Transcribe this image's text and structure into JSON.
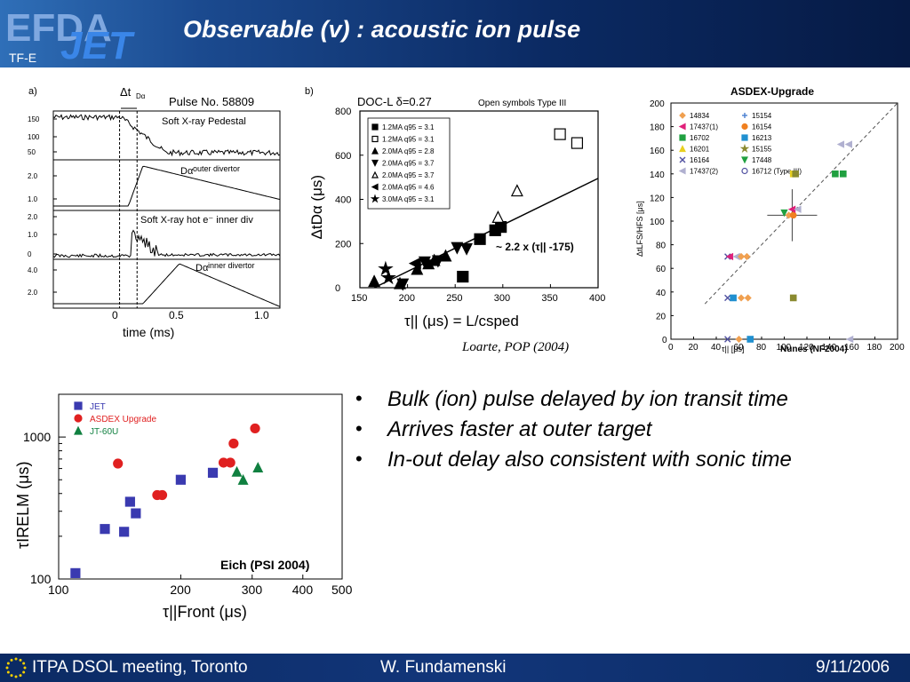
{
  "header": {
    "title": "Observable (v) : acoustic ion pulse",
    "logo_text_efda": "EFDA",
    "logo_text_jet": "JET",
    "logo_text_tfe": "TF-E"
  },
  "footer": {
    "meeting": "ITPA DSOL meeting, Toronto",
    "author": "W. Fundamenski",
    "date": "9/11/2006"
  },
  "citation": "Loarte, POP (2004)",
  "bullets": [
    "Bulk (ion) pulse delayed by ion transit time",
    "Arrives faster at outer target",
    "In-out delay also consistent with sonic time"
  ],
  "panel_a": {
    "label": "a)",
    "delta_label": "Δt",
    "delta_sub": "Dα",
    "pulse_label": "Pulse No. 58809",
    "traces": [
      {
        "name": "Soft X-ray Pedestal",
        "ticks": [
          "150",
          "100",
          "50"
        ]
      },
      {
        "name": "Dαouter divertor",
        "ticks": [
          "2.0",
          "1.0"
        ]
      },
      {
        "name": "Soft X-ray hot e⁻ inner div",
        "ticks": [
          "2.0",
          "1.0",
          "0"
        ]
      },
      {
        "name": "Dαinner divertor",
        "ticks": [
          "4.0",
          "2.0"
        ]
      }
    ],
    "xticks": [
      "0",
      "0.5",
      "1.0"
    ],
    "xlabel": "time (ms)"
  },
  "chart_data": [
    {
      "type": "scatter",
      "panel": "b)",
      "title": "DOC-L δ=0.27",
      "subtitle": "Open symbols Type III",
      "xlabel": "τ|| (μs) = L/csped",
      "ylabel": "ΔtDα (μs)",
      "xlim": [
        150,
        400
      ],
      "ylim": [
        0,
        800
      ],
      "xticks": [
        150,
        200,
        250,
        300,
        350,
        400
      ],
      "yticks": [
        0,
        200,
        400,
        600,
        800
      ],
      "fit_label": "~ 2.2 x (τ|| -175)",
      "fit_line": [
        [
          165,
          -22
        ],
        [
          400,
          495
        ]
      ],
      "legend": [
        {
          "marker": "square-filled",
          "label": "1.2MA q95 = 3.1"
        },
        {
          "marker": "square-open",
          "label": "1.2MA q95 = 3.1"
        },
        {
          "marker": "triangle-up-filled",
          "label": "2.0MA q95 = 2.8"
        },
        {
          "marker": "triangle-down-filled",
          "label": "2.0MA q95 = 3.7"
        },
        {
          "marker": "triangle-up-open",
          "label": "2.0MA q95 = 3.7"
        },
        {
          "marker": "triangle-left-filled",
          "label": "2.0MA q95 = 4.6"
        },
        {
          "marker": "star-filled",
          "label": "3.0MA q95 = 3.1"
        }
      ],
      "series": [
        {
          "name": "1.2MA q95 = 3.1",
          "marker": "square-filled",
          "points": [
            [
              258,
              50
            ],
            [
              276,
              220
            ],
            [
              292,
              260
            ],
            [
              298,
              275
            ]
          ]
        },
        {
          "name": "1.2MA q95 = 3.1 (Type III)",
          "marker": "square-open",
          "points": [
            [
              360,
              695
            ],
            [
              378,
              655
            ]
          ]
        },
        {
          "name": "2.0MA q95 = 2.8",
          "marker": "triangle-up-filled",
          "points": [
            [
              165,
              30
            ],
            [
              192,
              20
            ],
            [
              210,
              85
            ],
            [
              222,
              110
            ],
            [
              240,
              145
            ],
            [
              228,
              125
            ]
          ]
        },
        {
          "name": "2.0MA q95 = 3.7",
          "marker": "triangle-down-filled",
          "points": [
            [
              195,
              15
            ],
            [
              218,
              115
            ],
            [
              232,
              120
            ],
            [
              252,
              180
            ],
            [
              262,
              175
            ]
          ]
        },
        {
          "name": "2.0MA q95 = 3.7 (Type III)",
          "marker": "triangle-up-open",
          "points": [
            [
              295,
              320
            ],
            [
              315,
              440
            ]
          ]
        },
        {
          "name": "2.0MA q95 = 4.6",
          "marker": "triangle-left-filled",
          "points": [
            [
              208,
              110
            ]
          ]
        },
        {
          "name": "3.0MA q95 = 3.1",
          "marker": "star-filled",
          "points": [
            [
              177,
              85
            ],
            [
              180,
              45
            ]
          ]
        }
      ]
    },
    {
      "type": "scatter",
      "title": "ASDEX-Upgrade",
      "xlabel": "τ|| [μs]",
      "ylabel": "ΔtLFS/HFS [μs]",
      "source": "Nunes (NF2004)",
      "xlim": [
        0,
        200
      ],
      "ylim": [
        0,
        200
      ],
      "xticks": [
        0,
        20,
        40,
        60,
        80,
        100,
        120,
        140,
        160,
        180,
        200
      ],
      "yticks": [
        0,
        20,
        40,
        60,
        80,
        100,
        120,
        140,
        160,
        180,
        200
      ],
      "legend": [
        {
          "label": "14834",
          "color": "#f0a050",
          "marker": "diamond"
        },
        {
          "label": "15154",
          "color": "#4a7fd0",
          "marker": "plus"
        },
        {
          "label": "17437(1)",
          "color": "#e0207a",
          "marker": "triangle-left"
        },
        {
          "label": "16154",
          "color": "#f08020",
          "marker": "circle"
        },
        {
          "label": "16702",
          "color": "#20a040",
          "marker": "square"
        },
        {
          "label": "16213",
          "color": "#2090d0",
          "marker": "square"
        },
        {
          "label": "16201",
          "color": "#e8d020",
          "marker": "triangle-up"
        },
        {
          "label": "15155",
          "color": "#8a8a30",
          "marker": "star"
        },
        {
          "label": "16164",
          "color": "#5050a0",
          "marker": "x"
        },
        {
          "label": "17448",
          "color": "#20a040",
          "marker": "triangle-down"
        },
        {
          "label": "17437(2)",
          "color": "#b0b0d0",
          "marker": "triangle-left"
        },
        {
          "label": "16712 (Type III)",
          "color": "#5050a0",
          "marker": "circle-open"
        }
      ],
      "errorbar_point": {
        "x": 107,
        "y": 105,
        "xerr": 22,
        "yerr": 22
      },
      "points": [
        {
          "x": 50,
          "y": 70,
          "color": "#5050a0",
          "marker": "x"
        },
        {
          "x": 52,
          "y": 70,
          "color": "#e0207a",
          "marker": "triangle-left"
        },
        {
          "x": 58,
          "y": 70,
          "color": "#b0b0d0",
          "marker": "triangle-left"
        },
        {
          "x": 62,
          "y": 70,
          "color": "#f0a050",
          "marker": "diamond"
        },
        {
          "x": 67,
          "y": 70,
          "color": "#f0a050",
          "marker": "diamond"
        },
        {
          "x": 50,
          "y": 35,
          "color": "#5050a0",
          "marker": "x"
        },
        {
          "x": 55,
          "y": 35,
          "color": "#2090d0",
          "marker": "square"
        },
        {
          "x": 62,
          "y": 35,
          "color": "#f0a050",
          "marker": "diamond"
        },
        {
          "x": 68,
          "y": 35,
          "color": "#f0a050",
          "marker": "diamond"
        },
        {
          "x": 50,
          "y": 0,
          "color": "#5050a0",
          "marker": "x"
        },
        {
          "x": 60,
          "y": 0,
          "color": "#f0a050",
          "marker": "diamond"
        },
        {
          "x": 70,
          "y": 0,
          "color": "#2090d0",
          "marker": "square"
        },
        {
          "x": 108,
          "y": 35,
          "color": "#8a8a30",
          "marker": "square"
        },
        {
          "x": 100,
          "y": 107,
          "color": "#20a040",
          "marker": "triangle-down"
        },
        {
          "x": 104,
          "y": 105,
          "color": "#f0a050",
          "marker": "diamond"
        },
        {
          "x": 108,
          "y": 105,
          "color": "#f08020",
          "marker": "circle"
        },
        {
          "x": 107,
          "y": 110,
          "color": "#e0207a",
          "marker": "triangle-left"
        },
        {
          "x": 112,
          "y": 110,
          "color": "#b0b0d0",
          "marker": "triangle-left"
        },
        {
          "x": 108,
          "y": 140,
          "color": "#e8d020",
          "marker": "square"
        },
        {
          "x": 110,
          "y": 140,
          "color": "#8a8a30",
          "marker": "square"
        },
        {
          "x": 145,
          "y": 140,
          "color": "#20a040",
          "marker": "square"
        },
        {
          "x": 152,
          "y": 140,
          "color": "#20a040",
          "marker": "square"
        },
        {
          "x": 150,
          "y": 165,
          "color": "#b0b0d0",
          "marker": "triangle-left"
        },
        {
          "x": 157,
          "y": 165,
          "color": "#b0b0d0",
          "marker": "triangle-left"
        },
        {
          "x": 158,
          "y": 0,
          "color": "#b0b0d0",
          "marker": "triangle-left"
        }
      ],
      "dashed_line": [
        [
          30,
          30
        ],
        [
          200,
          200
        ]
      ]
    },
    {
      "type": "scatter",
      "xlabel": "τ||Front (μs)",
      "ylabel": "τIRELM (μs)",
      "source": "Eich (PSI 2004)",
      "xscale": "log",
      "yscale": "log",
      "xlim": [
        100,
        500
      ],
      "ylim": [
        100,
        2000
      ],
      "xticks": [
        100,
        200,
        300,
        400,
        500
      ],
      "yticks": [
        100,
        1000
      ],
      "series": [
        {
          "name": "JET",
          "color": "#3a3ab0",
          "marker": "square",
          "points": [
            [
              110,
              110
            ],
            [
              130,
              225
            ],
            [
              145,
              215
            ],
            [
              150,
              350
            ],
            [
              155,
              290
            ],
            [
              200,
              500
            ],
            [
              240,
              560
            ]
          ]
        },
        {
          "name": "ASDEX Upgrade",
          "color": "#e02020",
          "marker": "circle",
          "points": [
            [
              140,
              650
            ],
            [
              175,
              390
            ],
            [
              180,
              390
            ],
            [
              255,
              660
            ],
            [
              265,
              660
            ],
            [
              270,
              900
            ],
            [
              305,
              1150
            ]
          ]
        },
        {
          "name": "JT-60U",
          "color": "#108040",
          "marker": "triangle-up",
          "points": [
            [
              275,
              570
            ],
            [
              285,
              500
            ],
            [
              310,
              610
            ]
          ]
        }
      ]
    }
  ]
}
